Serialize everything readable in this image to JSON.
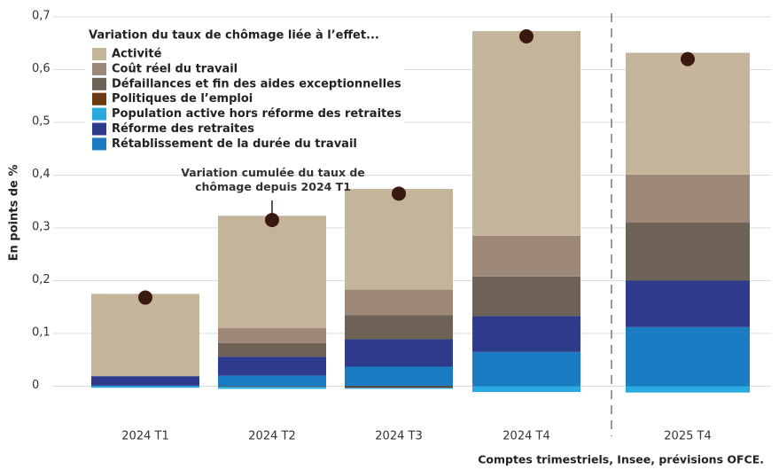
{
  "chart_data": {
    "type": "stacked-bar",
    "y_label": "En points de %",
    "legend_title": "Variation du taux de chômage liée à l’effet...",
    "annotation": "Variation cumulée du taux de chômage depuis 2024 T1",
    "source": "Comptes trimestriels, Insee, prévisions OFCE.",
    "categories": [
      "2024 T1",
      "2024 T2",
      "2024 T3",
      "2024 T4",
      "2025 T4"
    ],
    "series": [
      {
        "name": "Activité",
        "color": "#c4b49a",
        "values": [
          0.156,
          0.213,
          0.191,
          0.388,
          0.231
        ]
      },
      {
        "name": "Coût réel du travail",
        "color": "#9e8878",
        "values": [
          0,
          0.028,
          0.048,
          0.077,
          0.091
        ]
      },
      {
        "name": "Défaillances et fin des aides exceptionnelles",
        "color": "#6e6256",
        "values": [
          0,
          0.026,
          0.046,
          0.075,
          0.11
        ]
      },
      {
        "name": "Politiques de l’emploi",
        "color": "#6b3a10",
        "values": [
          0,
          -0.001,
          -0.003,
          0,
          0
        ]
      },
      {
        "name": "Population active hors réforme des retraites",
        "color": "#2aa8e0",
        "values": [
          -0.003,
          -0.004,
          -0.002,
          -0.011,
          -0.012
        ]
      },
      {
        "name": "Réforme des retraites",
        "color": "#2e3a8c",
        "values": [
          0.018,
          0.036,
          0.052,
          0.068,
          0.088
        ]
      },
      {
        "name": "Rétablissement de la durée du travail",
        "color": "#1b7cc4",
        "values": [
          0.001,
          0.02,
          0.037,
          0.065,
          0.112
        ]
      }
    ],
    "points": [
      0.168,
      0.315,
      0.365,
      0.663,
      0.62
    ],
    "points_color": "#3a1a10",
    "ylim": [
      -0.02,
      0.7
    ],
    "yticks": [
      0,
      {
        "value": 0.1,
        "label": "0,1"
      },
      {
        "value": 0.2,
        "label": "0,2"
      },
      {
        "value": 0.3,
        "label": "0,3"
      },
      {
        "value": 0.4,
        "label": "0,4"
      },
      {
        "value": 0.5,
        "label": "0,5"
      },
      {
        "value": 0.6,
        "label": "0,6"
      },
      {
        "value": 0.7,
        "label": "0,7"
      }
    ],
    "grid": true
  }
}
